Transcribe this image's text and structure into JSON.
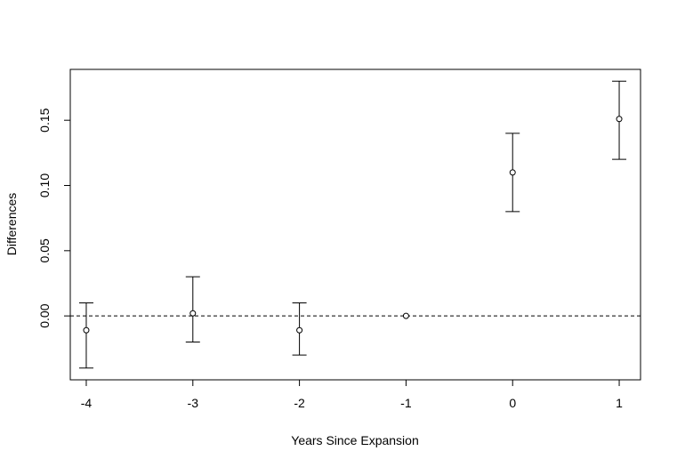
{
  "chart_data": {
    "type": "scatter",
    "title": "",
    "xlabel": "Years Since Expansion",
    "ylabel": "Differences",
    "xlim": [
      -4.15,
      1.2
    ],
    "ylim": [
      -0.049,
      0.189
    ],
    "x_ticks": [
      -4,
      -3,
      -2,
      -1,
      0,
      1
    ],
    "x_tick_labels": [
      "-4",
      "-3",
      "-2",
      "-1",
      "0",
      "1"
    ],
    "y_ticks": [
      0.0,
      0.05,
      0.1,
      0.15
    ],
    "y_tick_labels": [
      "0.00",
      "0.05",
      "0.10",
      "0.15"
    ],
    "reference_line": {
      "y": 0,
      "style": "dashed"
    },
    "grid": false,
    "legend": "none",
    "points": [
      {
        "x": -4,
        "y": -0.011,
        "lower": -0.04,
        "upper": 0.01
      },
      {
        "x": -3,
        "y": 0.002,
        "lower": -0.02,
        "upper": 0.03
      },
      {
        "x": -2,
        "y": -0.011,
        "lower": -0.03,
        "upper": 0.01
      },
      {
        "x": -1,
        "y": 0.0,
        "lower": 0.0,
        "upper": 0.0
      },
      {
        "x": 0,
        "y": 0.11,
        "lower": 0.08,
        "upper": 0.14
      },
      {
        "x": 1,
        "y": 0.151,
        "lower": 0.12,
        "upper": 0.18
      }
    ]
  }
}
